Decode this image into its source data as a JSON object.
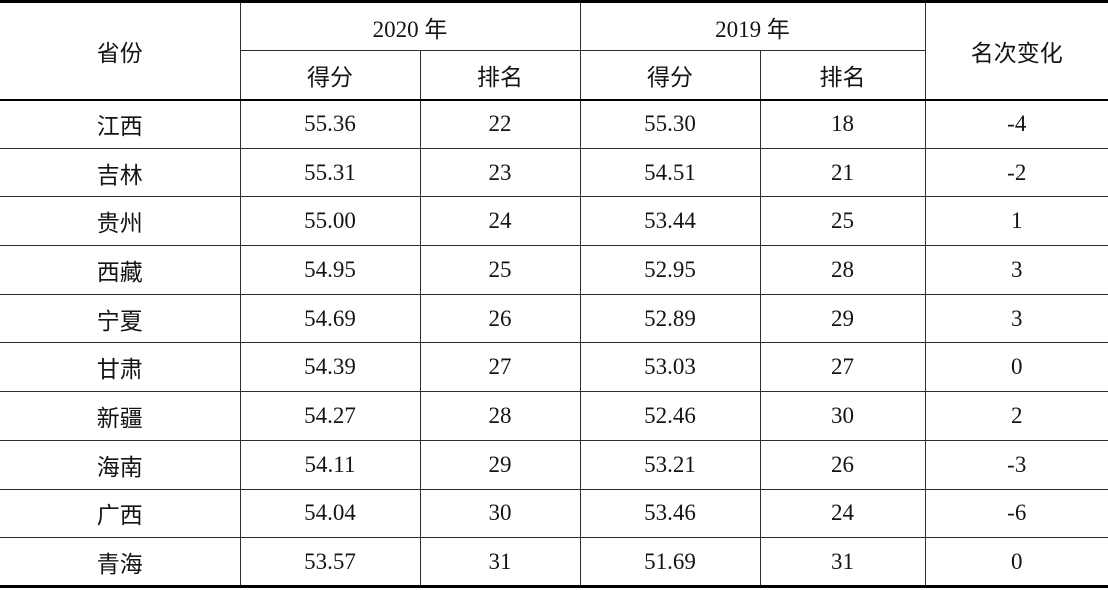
{
  "table": {
    "header": {
      "province": "省份",
      "year_2020": "2020 年",
      "year_2019": "2019 年",
      "rank_change": "名次变化",
      "score_2020": "得分",
      "rank_2020": "排名",
      "score_2019": "得分",
      "rank_2019": "排名"
    },
    "rows": [
      {
        "province": "江西",
        "score_2020": "55.36",
        "rank_2020": "22",
        "score_2019": "55.30",
        "rank_2019": "18",
        "change": "-4"
      },
      {
        "province": "吉林",
        "score_2020": "55.31",
        "rank_2020": "23",
        "score_2019": "54.51",
        "rank_2019": "21",
        "change": "-2"
      },
      {
        "province": "贵州",
        "score_2020": "55.00",
        "rank_2020": "24",
        "score_2019": "53.44",
        "rank_2019": "25",
        "change": "1"
      },
      {
        "province": "西藏",
        "score_2020": "54.95",
        "rank_2020": "25",
        "score_2019": "52.95",
        "rank_2019": "28",
        "change": "3"
      },
      {
        "province": "宁夏",
        "score_2020": "54.69",
        "rank_2020": "26",
        "score_2019": "52.89",
        "rank_2019": "29",
        "change": "3"
      },
      {
        "province": "甘肃",
        "score_2020": "54.39",
        "rank_2020": "27",
        "score_2019": "53.03",
        "rank_2019": "27",
        "change": "0"
      },
      {
        "province": "新疆",
        "score_2020": "54.27",
        "rank_2020": "28",
        "score_2019": "52.46",
        "rank_2019": "30",
        "change": "2"
      },
      {
        "province": "海南",
        "score_2020": "54.11",
        "rank_2020": "29",
        "score_2019": "53.21",
        "rank_2019": "26",
        "change": "-3"
      },
      {
        "province": "广西",
        "score_2020": "54.04",
        "rank_2020": "30",
        "score_2019": "53.46",
        "rank_2019": "24",
        "change": "-6"
      },
      {
        "province": "青海",
        "score_2020": "53.57",
        "rank_2020": "31",
        "score_2019": "51.69",
        "rank_2019": "31",
        "change": "0"
      }
    ],
    "colors": {
      "border_thick": "#000000",
      "border_thin": "#2e2e2e",
      "background": "#ffffff",
      "text": "#141414"
    }
  }
}
